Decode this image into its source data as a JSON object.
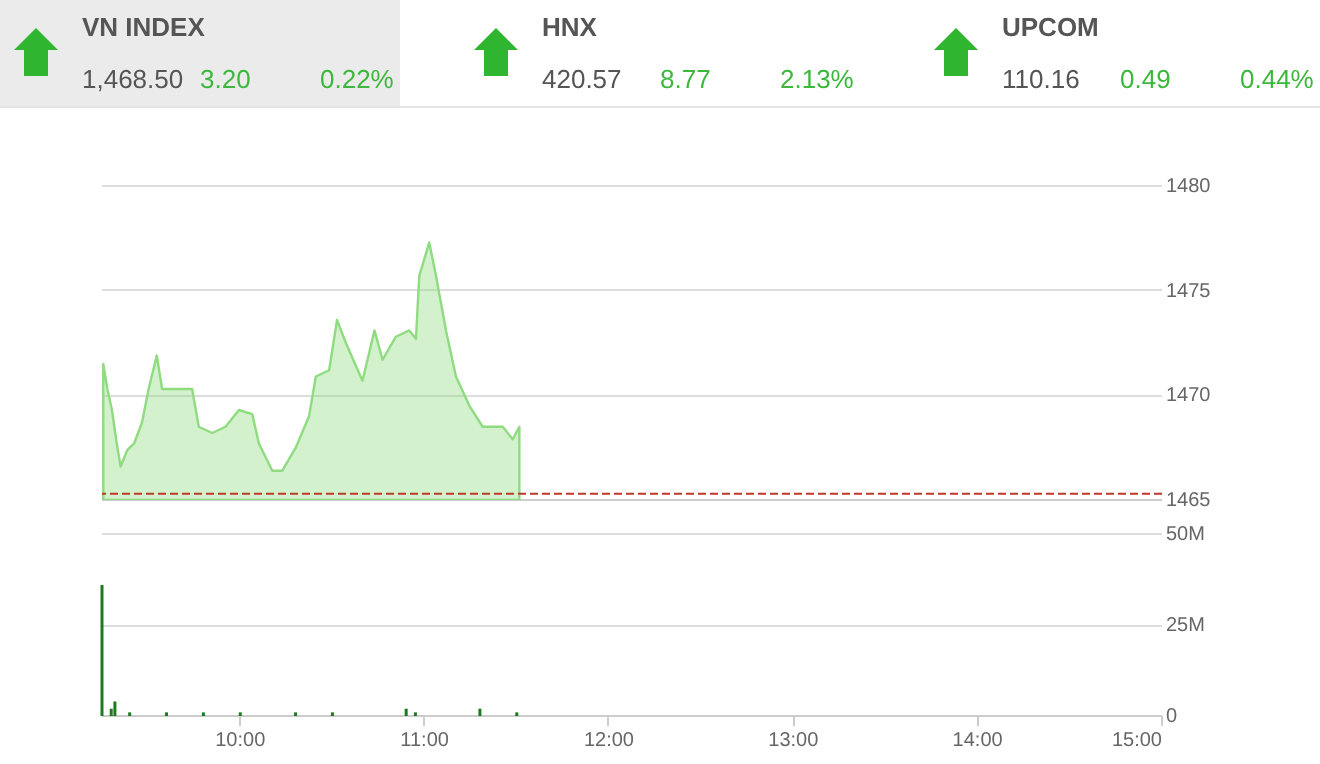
{
  "chart_data": [
    {
      "type": "area",
      "annotations": [
        "VN INDEX",
        "1,468.50",
        "3.20",
        "0.22%",
        "HNX",
        "420.57",
        "8.77",
        "2.13%",
        "UPCOM",
        "110.16",
        "0.49",
        "0.44%"
      ],
      "x": [
        9.257,
        9.279,
        9.304,
        9.33,
        9.351,
        9.388,
        9.424,
        9.467,
        9.503,
        9.547,
        9.576,
        9.63,
        9.685,
        9.739,
        9.775,
        9.848,
        9.92,
        9.993,
        10.065,
        10.101,
        10.174,
        10.228,
        10.301,
        10.373,
        10.41,
        10.482,
        10.525,
        10.573,
        10.663,
        10.728,
        10.772,
        10.844,
        10.917,
        10.953,
        10.971,
        11.025,
        11.062,
        11.116,
        11.17,
        11.243,
        11.315,
        11.424,
        11.478,
        11.514
      ],
      "series": [
        {
          "color": "#8fdc80",
          "values": [
            1471.5,
            1470.3,
            1469.3,
            1467.7,
            1466.6,
            1467.4,
            1467.7,
            1468.7,
            1470.3,
            1471.9,
            1470.3,
            1470.3,
            1470.3,
            1470.3,
            1468.5,
            1468.2,
            1468.5,
            1469.3,
            1469.1,
            1467.7,
            1466.4,
            1466.4,
            1467.5,
            1469.0,
            1470.9,
            1471.2,
            1473.6,
            1472.5,
            1470.7,
            1473.1,
            1471.7,
            1472.8,
            1473.1,
            1472.7,
            1475.7,
            1477.3,
            1475.7,
            1473.1,
            1470.9,
            1469.5,
            1468.5,
            1468.5,
            1467.9,
            1468.5
          ]
        }
      ],
      "xlim": [
        9.25,
        15
      ],
      "ylim": [
        1465,
        1480
      ],
      "yticks": [
        1465,
        1470,
        1475,
        1480
      ],
      "grid": "y",
      "tick_labels": "y",
      "ref_lines": [
        {
          "axis": "y",
          "value": 1465.3,
          "color": "#c0392b",
          "line_style": "dashed"
        }
      ]
    },
    {
      "type": "bar",
      "x": [
        9.25,
        9.3,
        9.32,
        9.4,
        9.6,
        9.8,
        10.0,
        10.3,
        10.5,
        10.9,
        10.95,
        11.3,
        11.5
      ],
      "series": [
        {
          "color": "#1e7a1e",
          "values": [
            36,
            2,
            4,
            1,
            1,
            1,
            1,
            1,
            1,
            2,
            1,
            2,
            1
          ]
        }
      ],
      "xlim": [
        9.25,
        15
      ],
      "xticks": [
        {
          "value": 10,
          "label": "10:00"
        },
        {
          "value": 11,
          "label": "11:00"
        },
        {
          "value": 12,
          "label": "12:00"
        },
        {
          "value": 13,
          "label": "13:00"
        },
        {
          "value": 14,
          "label": "14:00"
        },
        {
          "value": 15,
          "label": "15:00"
        }
      ],
      "ylim": [
        0,
        50
      ],
      "yticks": [
        0,
        {
          "value": 25,
          "label": "25M"
        },
        {
          "value": 50,
          "label": "50M"
        }
      ],
      "grid": "y"
    }
  ]
}
